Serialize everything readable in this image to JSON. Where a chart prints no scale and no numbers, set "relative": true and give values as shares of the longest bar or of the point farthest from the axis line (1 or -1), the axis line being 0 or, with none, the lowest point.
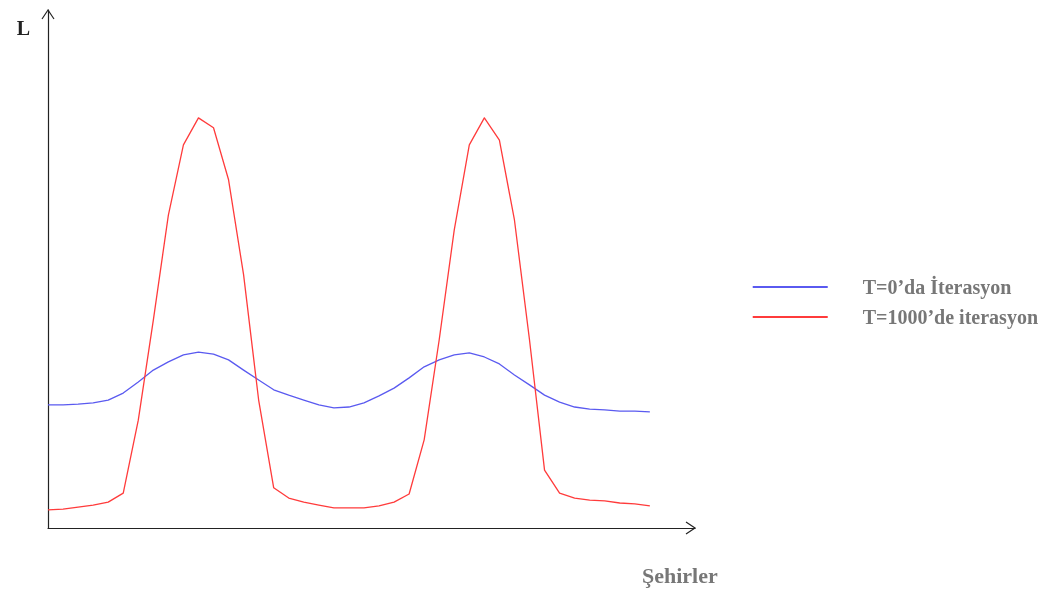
{
  "chart_data": {
    "type": "line",
    "relative": true,
    "xlabel": "Şehirler",
    "ylabel": "L",
    "legend": "right",
    "marker": "none",
    "grid": false,
    "categories": [
      null,
      null,
      null,
      null,
      null,
      null,
      null,
      null,
      null,
      null,
      null,
      null,
      null,
      null,
      null,
      null,
      null,
      null,
      null,
      null,
      null,
      null,
      null,
      null,
      null,
      null,
      null,
      null,
      null,
      null,
      null,
      null,
      null,
      null,
      null,
      null,
      null,
      null,
      null,
      null,
      null
    ],
    "series": [
      {
        "name": "T=0’da İterasyon",
        "color": "#5a5af0",
        "values": [
          0.3,
          0.3,
          0.302,
          0.305,
          0.312,
          0.329,
          0.356,
          0.385,
          0.405,
          0.422,
          0.429,
          0.424,
          0.41,
          0.385,
          0.361,
          0.337,
          0.324,
          0.312,
          0.3,
          0.293,
          0.295,
          0.305,
          0.322,
          0.341,
          0.366,
          0.393,
          0.41,
          0.422,
          0.427,
          0.417,
          0.4,
          0.373,
          0.349,
          0.324,
          0.307,
          0.295,
          0.29,
          0.288,
          0.285,
          0.285,
          0.283
        ]
      },
      {
        "name": "T=1000’de iterasyon",
        "color": "#ff3b3b",
        "values": [
          0.044,
          0.046,
          0.051,
          0.056,
          0.063,
          0.085,
          0.263,
          0.507,
          0.763,
          0.934,
          1,
          0.976,
          0.849,
          0.617,
          0.312,
          0.098,
          0.073,
          0.063,
          0.056,
          0.049,
          0.049,
          0.049,
          0.054,
          0.063,
          0.083,
          0.215,
          0.459,
          0.727,
          0.934,
          1,
          0.946,
          0.751,
          0.459,
          0.141,
          0.085,
          0.073,
          0.068,
          0.066,
          0.061,
          0.059,
          0.054
        ]
      }
    ]
  }
}
